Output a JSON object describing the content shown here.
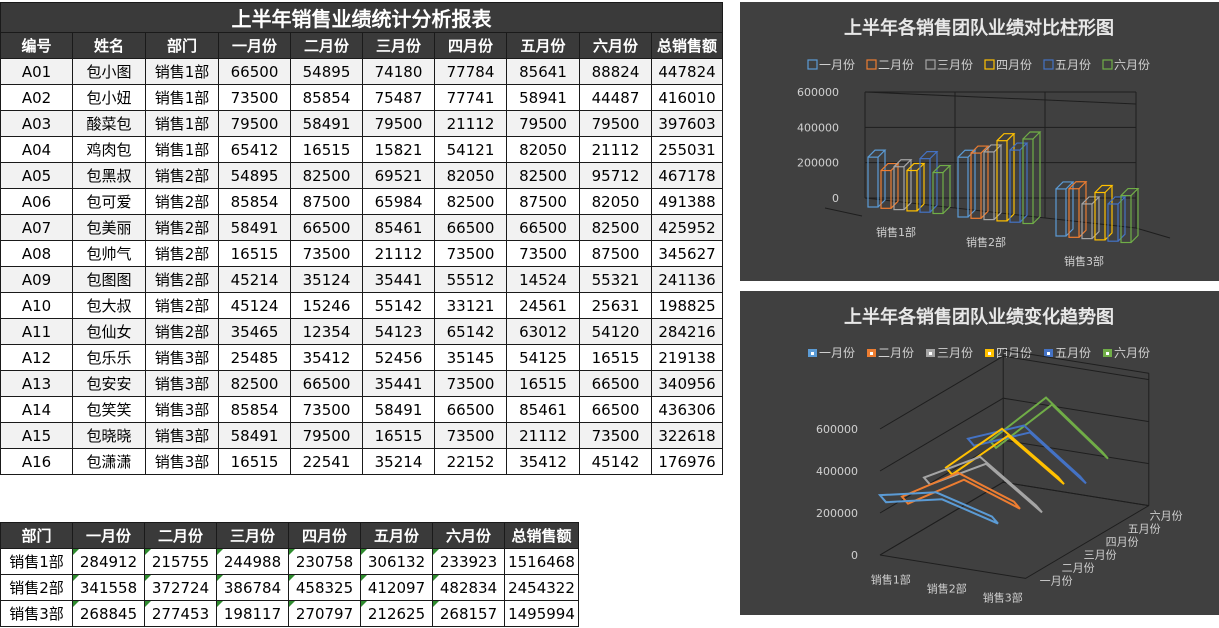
{
  "main_table": {
    "title": "上半年销售业绩统计分析报表",
    "headers": [
      "编号",
      "姓名",
      "部门",
      "一月份",
      "二月份",
      "三月份",
      "四月份",
      "五月份",
      "六月份",
      "总销售额"
    ],
    "rows": [
      [
        "A01",
        "包小图",
        "销售1部",
        "66500",
        "54895",
        "74180",
        "77784",
        "85641",
        "88824",
        "447824"
      ],
      [
        "A02",
        "包小妞",
        "销售1部",
        "73500",
        "85854",
        "75487",
        "77741",
        "58941",
        "44487",
        "416010"
      ],
      [
        "A03",
        "酸菜包",
        "销售1部",
        "79500",
        "58491",
        "79500",
        "21112",
        "79500",
        "79500",
        "397603"
      ],
      [
        "A04",
        "鸡肉包",
        "销售1部",
        "65412",
        "16515",
        "15821",
        "54121",
        "82050",
        "21112",
        "255031"
      ],
      [
        "A05",
        "包黑叔",
        "销售2部",
        "54895",
        "82500",
        "69521",
        "82050",
        "82500",
        "95712",
        "467178"
      ],
      [
        "A06",
        "包可爱",
        "销售2部",
        "85854",
        "87500",
        "65984",
        "82500",
        "87500",
        "82050",
        "491388"
      ],
      [
        "A07",
        "包美丽",
        "销售2部",
        "58491",
        "66500",
        "85461",
        "66500",
        "66500",
        "82500",
        "425952"
      ],
      [
        "A08",
        "包帅气",
        "销售2部",
        "16515",
        "73500",
        "21112",
        "73500",
        "73500",
        "87500",
        "345627"
      ],
      [
        "A09",
        "包图图",
        "销售2部",
        "45214",
        "35124",
        "35441",
        "55512",
        "14524",
        "55321",
        "241136"
      ],
      [
        "A10",
        "包大叔",
        "销售2部",
        "45124",
        "15246",
        "55142",
        "33121",
        "24561",
        "25631",
        "198825"
      ],
      [
        "A11",
        "包仙女",
        "销售2部",
        "35465",
        "12354",
        "54123",
        "65142",
        "63012",
        "54120",
        "284216"
      ],
      [
        "A12",
        "包乐乐",
        "销售3部",
        "25485",
        "35412",
        "52456",
        "35145",
        "54125",
        "16515",
        "219138"
      ],
      [
        "A13",
        "包安安",
        "销售3部",
        "82500",
        "66500",
        "35441",
        "73500",
        "16515",
        "66500",
        "340956"
      ],
      [
        "A14",
        "包笑笑",
        "销售3部",
        "85854",
        "73500",
        "58491",
        "66500",
        "85461",
        "66500",
        "436306"
      ],
      [
        "A15",
        "包晓晓",
        "销售3部",
        "58491",
        "79500",
        "16515",
        "73500",
        "21112",
        "73500",
        "322618"
      ],
      [
        "A16",
        "包潇潇",
        "销售3部",
        "16515",
        "22541",
        "35214",
        "22152",
        "35412",
        "45142",
        "176976"
      ]
    ]
  },
  "summary_table": {
    "headers": [
      "部门",
      "一月份",
      "二月份",
      "三月份",
      "四月份",
      "五月份",
      "六月份",
      "总销售额"
    ],
    "rows": [
      [
        "销售1部",
        "284912",
        "215755",
        "244988",
        "230758",
        "306132",
        "233923",
        "1516468"
      ],
      [
        "销售2部",
        "341558",
        "372724",
        "386784",
        "458325",
        "412097",
        "482834",
        "2454322"
      ],
      [
        "销售3部",
        "268845",
        "277453",
        "198117",
        "270797",
        "212625",
        "268157",
        "1495994"
      ]
    ]
  },
  "colors": {
    "header_bg": "#3a3a3a",
    "chart_bg": "#404040",
    "series": [
      "#5b9bd5",
      "#ed7d31",
      "#a5a5a5",
      "#ffc000",
      "#4472c4",
      "#70ad47"
    ]
  },
  "chart_data": [
    {
      "type": "bar",
      "title": "上半年各销售团队业绩对比柱形图",
      "legend_position": "top",
      "categories": [
        "销售1部",
        "销售2部",
        "销售3部"
      ],
      "series": [
        {
          "name": "一月份",
          "values": [
            284912,
            341558,
            268845
          ]
        },
        {
          "name": "二月份",
          "values": [
            215755,
            372724,
            277453
          ]
        },
        {
          "name": "三月份",
          "values": [
            244988,
            386784,
            198117
          ]
        },
        {
          "name": "四月份",
          "values": [
            230758,
            458325,
            270797
          ]
        },
        {
          "name": "五月份",
          "values": [
            306132,
            412097,
            212625
          ]
        },
        {
          "name": "六月份",
          "values": [
            233923,
            482834,
            268157
          ]
        }
      ],
      "yticks": [
        "0",
        "200000",
        "400000",
        "600000"
      ],
      "ylim": [
        0,
        600000
      ],
      "grid": true
    },
    {
      "type": "line",
      "title": "上半年各销售团队业绩变化趋势图",
      "legend_position": "top",
      "categories": [
        "销售1部",
        "销售2部",
        "销售3部"
      ],
      "series": [
        {
          "name": "一月份",
          "values": [
            284912,
            341558,
            268845
          ]
        },
        {
          "name": "二月份",
          "values": [
            215755,
            372724,
            277453
          ]
        },
        {
          "name": "三月份",
          "values": [
            244988,
            386784,
            198117
          ]
        },
        {
          "name": "四月份",
          "values": [
            230758,
            458325,
            270797
          ]
        },
        {
          "name": "五月份",
          "values": [
            306132,
            412097,
            212625
          ]
        },
        {
          "name": "六月份",
          "values": [
            233923,
            482834,
            268157
          ]
        }
      ],
      "yticks": [
        "0",
        "200000",
        "400000",
        "600000"
      ],
      "ylim": [
        0,
        600000
      ],
      "grid": true
    }
  ]
}
